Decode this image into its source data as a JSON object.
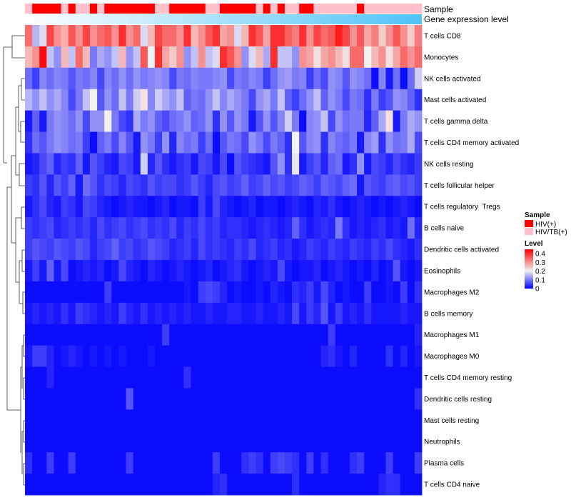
{
  "chart_data": {
    "type": "heatmap",
    "title": "",
    "annotation_labels": {
      "sample": "Sample",
      "gene_expression": "Gene expression level"
    },
    "row_labels": [
      "T cells CD8",
      "Monocytes",
      "NK cells activated",
      "Mast cells activated",
      "T cells gamma delta",
      "T cells CD4 memory activated",
      "NK cells resting",
      "T cells follicular helper",
      "T cells regulatory  Tregs",
      "B cells naive",
      "Dendritic cells activated",
      "Eosinophils",
      "Macrophages M2",
      "B cells memory",
      "Macrophages M1",
      "Macrophages M0",
      "T cells CD4 memory resting",
      "Dendritic cells resting",
      "Mast cells resting",
      "Neutrophils",
      "Plasma cells",
      "T cells CD4 naive"
    ],
    "sample_groups": [
      "HIV/TB(+)",
      "HIV(+)",
      "HIV(+)",
      "HIV(+)",
      "HIV(+)",
      "HIV/TB(+)",
      "HIV(+)",
      "HIV/TB(+)",
      "HIV/TB(+)",
      "HIV(+)",
      "HIV/TB(+)",
      "HIV(+)",
      "HIV(+)",
      "HIV(+)",
      "HIV(+)",
      "HIV(+)",
      "HIV(+)",
      "HIV(+)",
      "HIV/TB(+)",
      "HIV/TB(+)",
      "HIV(+)",
      "HIV(+)",
      "HIV(+)",
      "HIV(+)",
      "HIV(+)",
      "HIV/TB(+)",
      "HIV/TB(+)",
      "HIV(+)",
      "HIV(+)",
      "HIV(+)",
      "HIV(+)",
      "HIV(+)",
      "HIV/TB(+)",
      "HIV(+)",
      "HIV/TB(+)",
      "HIV(+)",
      "HIV/TB(+)",
      "HIV/TB(+)",
      "HIV(+)",
      "HIV(+)",
      "HIV/TB(+)",
      "HIV/TB(+)",
      "HIV/TB(+)",
      "HIV/TB(+)",
      "HIV/TB(+)",
      "HIV/TB(+)",
      "HIV(+)",
      "HIV/TB(+)",
      "HIV/TB(+)",
      "HIV/TB(+)",
      "HIV/TB(+)",
      "HIV/TB(+)",
      "HIV/TB(+)",
      "HIV/TB(+)",
      "HIV/TB(+)"
    ],
    "values": [
      [
        0.34,
        0.15,
        0.18,
        0.38,
        0.3,
        0.27,
        0.36,
        0.3,
        0.38,
        0.3,
        0.34,
        0.36,
        0.3,
        0.4,
        0.3,
        0.34,
        0.18,
        0.26,
        0.38,
        0.34,
        0.34,
        0.3,
        0.4,
        0.26,
        0.3,
        0.36,
        0.4,
        0.28,
        0.3,
        0.18,
        0.26,
        0.4,
        0.36,
        0.28,
        0.4,
        0.4,
        0.35,
        0.32,
        0.4,
        0.3,
        0.38,
        0.34,
        0.36,
        0.42,
        0.38,
        0.3,
        0.36,
        0.28,
        0.32,
        0.24,
        0.3,
        0.36,
        0.3,
        0.24,
        0.32
      ],
      [
        0.26,
        0.3,
        0.44,
        0.16,
        0.12,
        0.26,
        0.16,
        0.34,
        0.26,
        0.1,
        0.14,
        0.12,
        0.16,
        0.26,
        0.12,
        0.16,
        0.36,
        0.2,
        0.4,
        0.28,
        0.24,
        0.3,
        0.12,
        0.16,
        0.3,
        0.16,
        0.18,
        0.4,
        0.36,
        0.3,
        0.12,
        0.18,
        0.26,
        0.14,
        0.4,
        0.16,
        0.16,
        0.12,
        0.3,
        0.28,
        0.22,
        0.28,
        0.3,
        0.26,
        0.22,
        0.34,
        0.34,
        0.2,
        0.26,
        0.3,
        0.22,
        0.28,
        0.34,
        0.3,
        0.34
      ],
      [
        0.09,
        0.05,
        0.11,
        0.09,
        0.11,
        0.1,
        0.07,
        0.1,
        0.09,
        0.11,
        0.06,
        0.11,
        0.09,
        0.12,
        0.09,
        0.12,
        0.1,
        0.11,
        0.12,
        0.11,
        0.06,
        0.1,
        0.09,
        0.11,
        0.1,
        0.1,
        0.11,
        0.12,
        0.06,
        0.1,
        0.09,
        0.11,
        0.1,
        0.05,
        0.09,
        0.12,
        0.13,
        0.1,
        0.11,
        0.05,
        0.09,
        0.06,
        0.12,
        0.11,
        0.07,
        0.12,
        0.11,
        0.09,
        0.01,
        0.11,
        0.02,
        0.09,
        0.01,
        0.09,
        0.17
      ],
      [
        0.15,
        0.12,
        0.16,
        0.12,
        0.14,
        0.11,
        0.06,
        0.1,
        0.16,
        0.2,
        0.07,
        0.12,
        0.09,
        0.16,
        0.1,
        0.17,
        0.22,
        0.11,
        0.17,
        0.14,
        0.12,
        0.16,
        0.08,
        0.1,
        0.09,
        0.12,
        0.16,
        0.11,
        0.14,
        0.12,
        0.1,
        0.06,
        0.12,
        0.14,
        0.1,
        0.16,
        0.08,
        0.05,
        0.09,
        0.12,
        0.16,
        0.08,
        0.12,
        0.1,
        0.06,
        0.1,
        0.09,
        0.04,
        0.1,
        0.05,
        0.07,
        0.12,
        0.11,
        0.08,
        0.04
      ],
      [
        0.02,
        0.08,
        0.02,
        0.1,
        0.12,
        0.11,
        0.09,
        0.12,
        0.06,
        0.12,
        0.12,
        0.2,
        0.1,
        0.06,
        0.04,
        0.14,
        0.1,
        0.12,
        0.08,
        0.06,
        0.09,
        0.1,
        0.12,
        0.08,
        0.09,
        0.12,
        0.04,
        0.12,
        0.07,
        0.12,
        0.1,
        0.02,
        0.07,
        0.12,
        0.07,
        0.11,
        0.17,
        0.1,
        0.01,
        0.11,
        0.12,
        0.16,
        0.06,
        0.12,
        0.09,
        0.1,
        0.1,
        0.03,
        0.08,
        0.14,
        0.22,
        0.02,
        0.1,
        0.14,
        0.12
      ],
      [
        0.04,
        0.09,
        0.07,
        0.1,
        0.12,
        0.11,
        0.09,
        0.1,
        0.05,
        0.01,
        0.08,
        0.1,
        0.06,
        0.11,
        0.07,
        0.02,
        0.12,
        0.1,
        0.05,
        0.12,
        0.03,
        0.11,
        0.09,
        0.1,
        0.05,
        0.09,
        0.01,
        0.07,
        0.1,
        0.09,
        0.06,
        0.12,
        0.1,
        0.06,
        0.1,
        0.08,
        0.04,
        0.2,
        0.07,
        0.11,
        0.12,
        0.04,
        0.11,
        0.09,
        0.08,
        0.1,
        0.02,
        0.11,
        0.13,
        0.04,
        0.12,
        0.09,
        0.1,
        0.14,
        0.06
      ],
      [
        0.02,
        0.03,
        0.06,
        0.08,
        0.03,
        0.05,
        0.04,
        0.08,
        0.02,
        0.07,
        0.05,
        0.03,
        0.02,
        0.06,
        0.05,
        0.02,
        0.17,
        0.03,
        0.07,
        0.04,
        0.02,
        0.04,
        0.05,
        0.02,
        0.06,
        0.05,
        0.02,
        0.06,
        0.01,
        0.07,
        0.05,
        0.04,
        0.03,
        0.02,
        0.07,
        0.12,
        0.04,
        0.19,
        0.02,
        0.05,
        0.07,
        0.03,
        0.08,
        0.09,
        0.02,
        0.04,
        0.12,
        0.02,
        0.06,
        0.05,
        0.03,
        0.06,
        0.04,
        0.03,
        0.05
      ],
      [
        0.05,
        0.04,
        0.07,
        0.03,
        0.07,
        0.05,
        0.08,
        0.02,
        0.09,
        0.07,
        0.04,
        0.06,
        0.05,
        0.03,
        0.06,
        0.05,
        0.04,
        0.07,
        0.05,
        0.06,
        0.06,
        0.04,
        0.05,
        0.07,
        0.05,
        0.03,
        0.06,
        0.07,
        0.05,
        0.06,
        0.08,
        0.05,
        0.06,
        0.08,
        0.06,
        0.07,
        0.05,
        0.06,
        0.08,
        0.07,
        0.05,
        0.08,
        0.07,
        0.06,
        0.08,
        0.09,
        0.02,
        0.07,
        0.06,
        0.05,
        0.07,
        0.08,
        0.06,
        0.07,
        0.05
      ],
      [
        0.02,
        0.04,
        0.06,
        0.03,
        0.02,
        0.05,
        0.04,
        0.02,
        0.06,
        0.05,
        0.03,
        0.02,
        0.01,
        0.02,
        0.03,
        0.02,
        0.02,
        0.01,
        0.02,
        0.03,
        0.01,
        0.02,
        0.02,
        0.01,
        0.05,
        0.02,
        0.06,
        0.03,
        0.02,
        0.01,
        0.02,
        0.03,
        0.01,
        0.02,
        0.02,
        0.01,
        0.02,
        0.03,
        0.02,
        0.01,
        0.03,
        0.02,
        0.04,
        0.02,
        0.01,
        0.02,
        0.03,
        0.02,
        0.01,
        0.02,
        0.01,
        0.02,
        0.03,
        0.02,
        0.01
      ],
      [
        0.05,
        0.04,
        0.05,
        0.06,
        0.03,
        0.04,
        0.05,
        0.04,
        0.05,
        0.03,
        0.06,
        0.04,
        0.05,
        0.06,
        0.04,
        0.05,
        0.06,
        0.04,
        0.05,
        0.04,
        0.06,
        0.03,
        0.05,
        0.04,
        0.06,
        0.04,
        0.05,
        0.03,
        0.04,
        0.04,
        0.03,
        0.02,
        0.03,
        0.04,
        0.03,
        0.02,
        0.03,
        0.08,
        0.04,
        0.02,
        0.03,
        0.04,
        0.03,
        0.1,
        0.04,
        0.02,
        0.03,
        0.02,
        0.03,
        0.04,
        0.02,
        0.03,
        0.02,
        0.09,
        0.03
      ],
      [
        0.05,
        0.07,
        0.06,
        0.05,
        0.07,
        0.06,
        0.05,
        0.07,
        0.06,
        0.03,
        0.05,
        0.06,
        0.08,
        0.05,
        0.06,
        0.04,
        0.05,
        0.07,
        0.06,
        0.05,
        0.03,
        0.04,
        0.05,
        0.03,
        0.06,
        0.04,
        0.05,
        0.04,
        0.03,
        0.05,
        0.04,
        0.06,
        0.03,
        0.04,
        0.05,
        0.03,
        0.04,
        0.02,
        0.03,
        0.05,
        0.04,
        0.03,
        0.05,
        0.04,
        0.03,
        0.05,
        0.04,
        0.03,
        0.05,
        0.04,
        0.06,
        0.04,
        0.03,
        0.02,
        0.04
      ],
      [
        0.02,
        0.05,
        0.02,
        0.08,
        0.02,
        0.06,
        0.01,
        0.02,
        0.03,
        0.02,
        0.03,
        0.01,
        0.02,
        0.06,
        0.03,
        0.02,
        0.01,
        0.03,
        0.02,
        0.01,
        0.02,
        0.03,
        0.02,
        0.01,
        0.02,
        0.03,
        0.01,
        0.02,
        0.03,
        0.04,
        0.02,
        0.01,
        0.02,
        0.03,
        0.02,
        0.06,
        0.02,
        0.01,
        0.02,
        0.02,
        0.03,
        0.01,
        0.02,
        0.03,
        0.02,
        0.01,
        0.02,
        0.01,
        0.03,
        0.01,
        0.02,
        0.07,
        0.02,
        0.01,
        0.02
      ],
      [
        0.01,
        0.01,
        0.01,
        0.01,
        0.01,
        0.01,
        0.01,
        0.01,
        0.01,
        0.01,
        0.01,
        0.05,
        0.01,
        0.01,
        0.01,
        0.01,
        0.01,
        0.01,
        0.01,
        0.01,
        0.01,
        0.01,
        0.02,
        0.01,
        0.05,
        0.06,
        0.05,
        0.03,
        0.01,
        0.02,
        0.01,
        0.01,
        0.02,
        0.01,
        0.03,
        0.02,
        0.01,
        0.04,
        0.03,
        0.05,
        0.02,
        0.06,
        0.03,
        0.01,
        0.02,
        0.01,
        0.01,
        0.05,
        0.01,
        0.01,
        0.02,
        0.01,
        0.05,
        0.01,
        0.04
      ],
      [
        0.02,
        0.03,
        0.02,
        0.03,
        0.02,
        0.04,
        0.02,
        0.05,
        0.04,
        0.03,
        0.02,
        0.03,
        0.02,
        0.05,
        0.03,
        0.02,
        0.04,
        0.02,
        0.03,
        0.02,
        0.03,
        0.02,
        0.03,
        0.02,
        0.02,
        0.03,
        0.02,
        0.02,
        0.03,
        0.03,
        0.02,
        0.02,
        0.03,
        0.02,
        0.02,
        0.03,
        0.02,
        0.06,
        0.02,
        0.05,
        0.03,
        0.07,
        0.02,
        0.05,
        0.02,
        0.03,
        0.02,
        0.04,
        0.02,
        0.02,
        0.02,
        0.02,
        0.03,
        0.02,
        0.02
      ],
      [
        0.01,
        0.01,
        0.01,
        0.01,
        0.01,
        0.01,
        0.01,
        0.01,
        0.01,
        0.01,
        0.01,
        0.01,
        0.01,
        0.01,
        0.01,
        0.01,
        0.01,
        0.01,
        0.01,
        0.05,
        0.01,
        0.01,
        0.01,
        0.01,
        0.01,
        0.01,
        0.01,
        0.01,
        0.01,
        0.01,
        0.01,
        0.01,
        0.01,
        0.01,
        0.01,
        0.01,
        0.01,
        0.01,
        0.01,
        0.01,
        0.01,
        0.01,
        0.05,
        0.01,
        0.01,
        0.01,
        0.01,
        0.01,
        0.01,
        0.01,
        0.01,
        0.01,
        0.01,
        0.01,
        0.03
      ],
      [
        0.02,
        0.05,
        0.05,
        0.03,
        0.01,
        0.02,
        0.03,
        0.02,
        0.01,
        0.02,
        0.01,
        0.02,
        0.01,
        0.02,
        0.01,
        0.01,
        0.01,
        0.02,
        0.01,
        0.01,
        0.01,
        0.01,
        0.01,
        0.01,
        0.01,
        0.01,
        0.01,
        0.01,
        0.01,
        0.01,
        0.01,
        0.01,
        0.01,
        0.01,
        0.01,
        0.01,
        0.01,
        0.01,
        0.01,
        0.01,
        0.01,
        0.03,
        0.04,
        0.02,
        0.01,
        0.03,
        0.01,
        0.01,
        0.01,
        0.01,
        0.04,
        0.01,
        0.03,
        0.01,
        0.02
      ],
      [
        0.01,
        0.01,
        0.01,
        0.03,
        0.01,
        0.01,
        0.01,
        0.01,
        0.01,
        0.01,
        0.01,
        0.01,
        0.01,
        0.01,
        0.01,
        0.01,
        0.01,
        0.01,
        0.01,
        0.01,
        0.01,
        0.01,
        0.04,
        0.01,
        0.01,
        0.01,
        0.01,
        0.01,
        0.01,
        0.01,
        0.01,
        0.01,
        0.01,
        0.01,
        0.01,
        0.01,
        0.01,
        0.01,
        0.01,
        0.01,
        0.01,
        0.01,
        0.01,
        0.01,
        0.01,
        0.01,
        0.01,
        0.01,
        0.01,
        0.01,
        0.01,
        0.01,
        0.01,
        0.01,
        0.01
      ],
      [
        0.01,
        0.01,
        0.01,
        0.01,
        0.01,
        0.01,
        0.01,
        0.01,
        0.01,
        0.01,
        0.01,
        0.01,
        0.01,
        0.01,
        0.07,
        0.01,
        0.01,
        0.01,
        0.01,
        0.01,
        0.01,
        0.01,
        0.01,
        0.01,
        0.01,
        0.01,
        0.01,
        0.01,
        0.01,
        0.01,
        0.01,
        0.01,
        0.01,
        0.01,
        0.01,
        0.01,
        0.01,
        0.01,
        0.01,
        0.01,
        0.01,
        0.01,
        0.01,
        0.01,
        0.01,
        0.01,
        0.01,
        0.01,
        0.01,
        0.01,
        0.01,
        0.01,
        0.01,
        0.01,
        0.04
      ],
      [
        0.01,
        0.01,
        0.01,
        0.01,
        0.01,
        0.01,
        0.01,
        0.01,
        0.01,
        0.01,
        0.01,
        0.01,
        0.01,
        0.01,
        0.01,
        0.01,
        0.01,
        0.01,
        0.01,
        0.01,
        0.01,
        0.01,
        0.01,
        0.01,
        0.01,
        0.01,
        0.01,
        0.01,
        0.01,
        0.01,
        0.01,
        0.01,
        0.01,
        0.01,
        0.01,
        0.01,
        0.01,
        0.01,
        0.01,
        0.01,
        0.01,
        0.01,
        0.01,
        0.01,
        0.01,
        0.01,
        0.01,
        0.01,
        0.01,
        0.01,
        0.01,
        0.01,
        0.01,
        0.01,
        0.01
      ],
      [
        0.01,
        0.01,
        0.01,
        0.01,
        0.01,
        0.01,
        0.01,
        0.01,
        0.01,
        0.01,
        0.01,
        0.01,
        0.01,
        0.01,
        0.01,
        0.01,
        0.01,
        0.01,
        0.01,
        0.01,
        0.01,
        0.01,
        0.01,
        0.01,
        0.01,
        0.01,
        0.01,
        0.01,
        0.01,
        0.01,
        0.01,
        0.01,
        0.01,
        0.01,
        0.01,
        0.01,
        0.01,
        0.01,
        0.01,
        0.01,
        0.01,
        0.01,
        0.01,
        0.01,
        0.01,
        0.01,
        0.01,
        0.01,
        0.01,
        0.01,
        0.01,
        0.01,
        0.01,
        0.01,
        0.01
      ],
      [
        0.04,
        0.01,
        0.01,
        0.05,
        0.01,
        0.01,
        0.05,
        0.01,
        0.01,
        0.01,
        0.01,
        0.01,
        0.01,
        0.01,
        0.05,
        0.01,
        0.01,
        0.01,
        0.01,
        0.01,
        0.01,
        0.01,
        0.01,
        0.01,
        0.01,
        0.01,
        0.05,
        0.01,
        0.01,
        0.01,
        0.04,
        0.05,
        0.04,
        0.01,
        0.05,
        0.06,
        0.05,
        0.04,
        0.01,
        0.05,
        0.01,
        0.04,
        0.01,
        0.01,
        0.01,
        0.04,
        0.05,
        0.01,
        0.01,
        0.01,
        0.05,
        0.01,
        0.01,
        0.01,
        0.05
      ],
      [
        0.01,
        0.01,
        0.01,
        0.01,
        0.01,
        0.01,
        0.01,
        0.01,
        0.01,
        0.01,
        0.01,
        0.01,
        0.01,
        0.01,
        0.01,
        0.01,
        0.01,
        0.01,
        0.01,
        0.01,
        0.01,
        0.01,
        0.01,
        0.01,
        0.01,
        0.01,
        0.03,
        0.04,
        0.01,
        0.01,
        0.01,
        0.01,
        0.01,
        0.01,
        0.01,
        0.01,
        0.01,
        0.04,
        0.01,
        0.01,
        0.01,
        0.01,
        0.01,
        0.01,
        0.01,
        0.01,
        0.01,
        0.01,
        0.01,
        0.03,
        0.04,
        0.04,
        0.01,
        0.01,
        0.01
      ]
    ],
    "color_scale": {
      "low": "#0000FF",
      "mid": "#F2F2F2",
      "high": "#FF0000",
      "domain": [
        0,
        0.2,
        0.45
      ]
    },
    "legend_sample": {
      "title": "Sample",
      "items": [
        {
          "label": "HIV(+)",
          "color": "#FF0000"
        },
        {
          "label": "HIV/TB(+)",
          "color": "#FFC0CB"
        }
      ]
    },
    "legend_level": {
      "title": "Level",
      "ticks": [
        0.4,
        0.3,
        0.2,
        0.1,
        0
      ]
    },
    "gene_expression_bar": {
      "from_color": "#FFFFFF",
      "to_color": "#4FC3F7"
    }
  }
}
